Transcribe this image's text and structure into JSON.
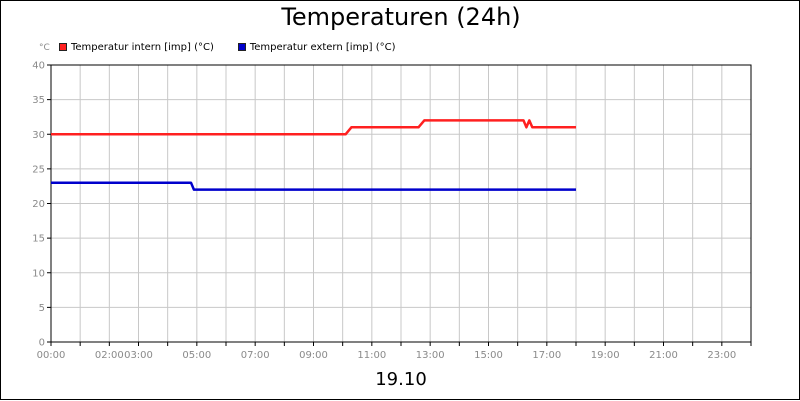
{
  "chart_data": {
    "type": "line",
    "title": "Temperaturen (24h)",
    "ylabel": "°C",
    "xlabel": "19.10",
    "ylim": [
      0,
      40
    ],
    "xlim": [
      0,
      24
    ],
    "grid": true,
    "legend_position": "top-left",
    "yticks": [
      0,
      5,
      10,
      15,
      20,
      25,
      30,
      35,
      40
    ],
    "xticks": [
      {
        "x": 0,
        "label": "00:00"
      },
      {
        "x": 2,
        "label": "02:00"
      },
      {
        "x": 3,
        "label": "03:00"
      },
      {
        "x": 5,
        "label": "05:00"
      },
      {
        "x": 7,
        "label": "07:00"
      },
      {
        "x": 9,
        "label": "09:00"
      },
      {
        "x": 11,
        "label": "11:00"
      },
      {
        "x": 13,
        "label": "13:00"
      },
      {
        "x": 15,
        "label": "15:00"
      },
      {
        "x": 17,
        "label": "17:00"
      },
      {
        "x": 19,
        "label": "19:00"
      },
      {
        "x": 21,
        "label": "21:00"
      },
      {
        "x": 23,
        "label": "23:00"
      }
    ],
    "series": [
      {
        "name": "Temperatur intern [imp] (°C)",
        "color": "#ff2020",
        "points": [
          [
            0,
            30
          ],
          [
            10.1,
            30
          ],
          [
            10.3,
            31
          ],
          [
            12.6,
            31
          ],
          [
            12.8,
            32
          ],
          [
            16.2,
            32
          ],
          [
            16.3,
            31
          ],
          [
            16.4,
            32
          ],
          [
            16.5,
            31
          ],
          [
            18,
            31
          ]
        ]
      },
      {
        "name": "Temperatur extern [imp] (°C)",
        "color": "#0000cc",
        "points": [
          [
            0,
            23
          ],
          [
            4.8,
            23
          ],
          [
            4.9,
            22
          ],
          [
            18,
            22
          ]
        ]
      }
    ]
  }
}
